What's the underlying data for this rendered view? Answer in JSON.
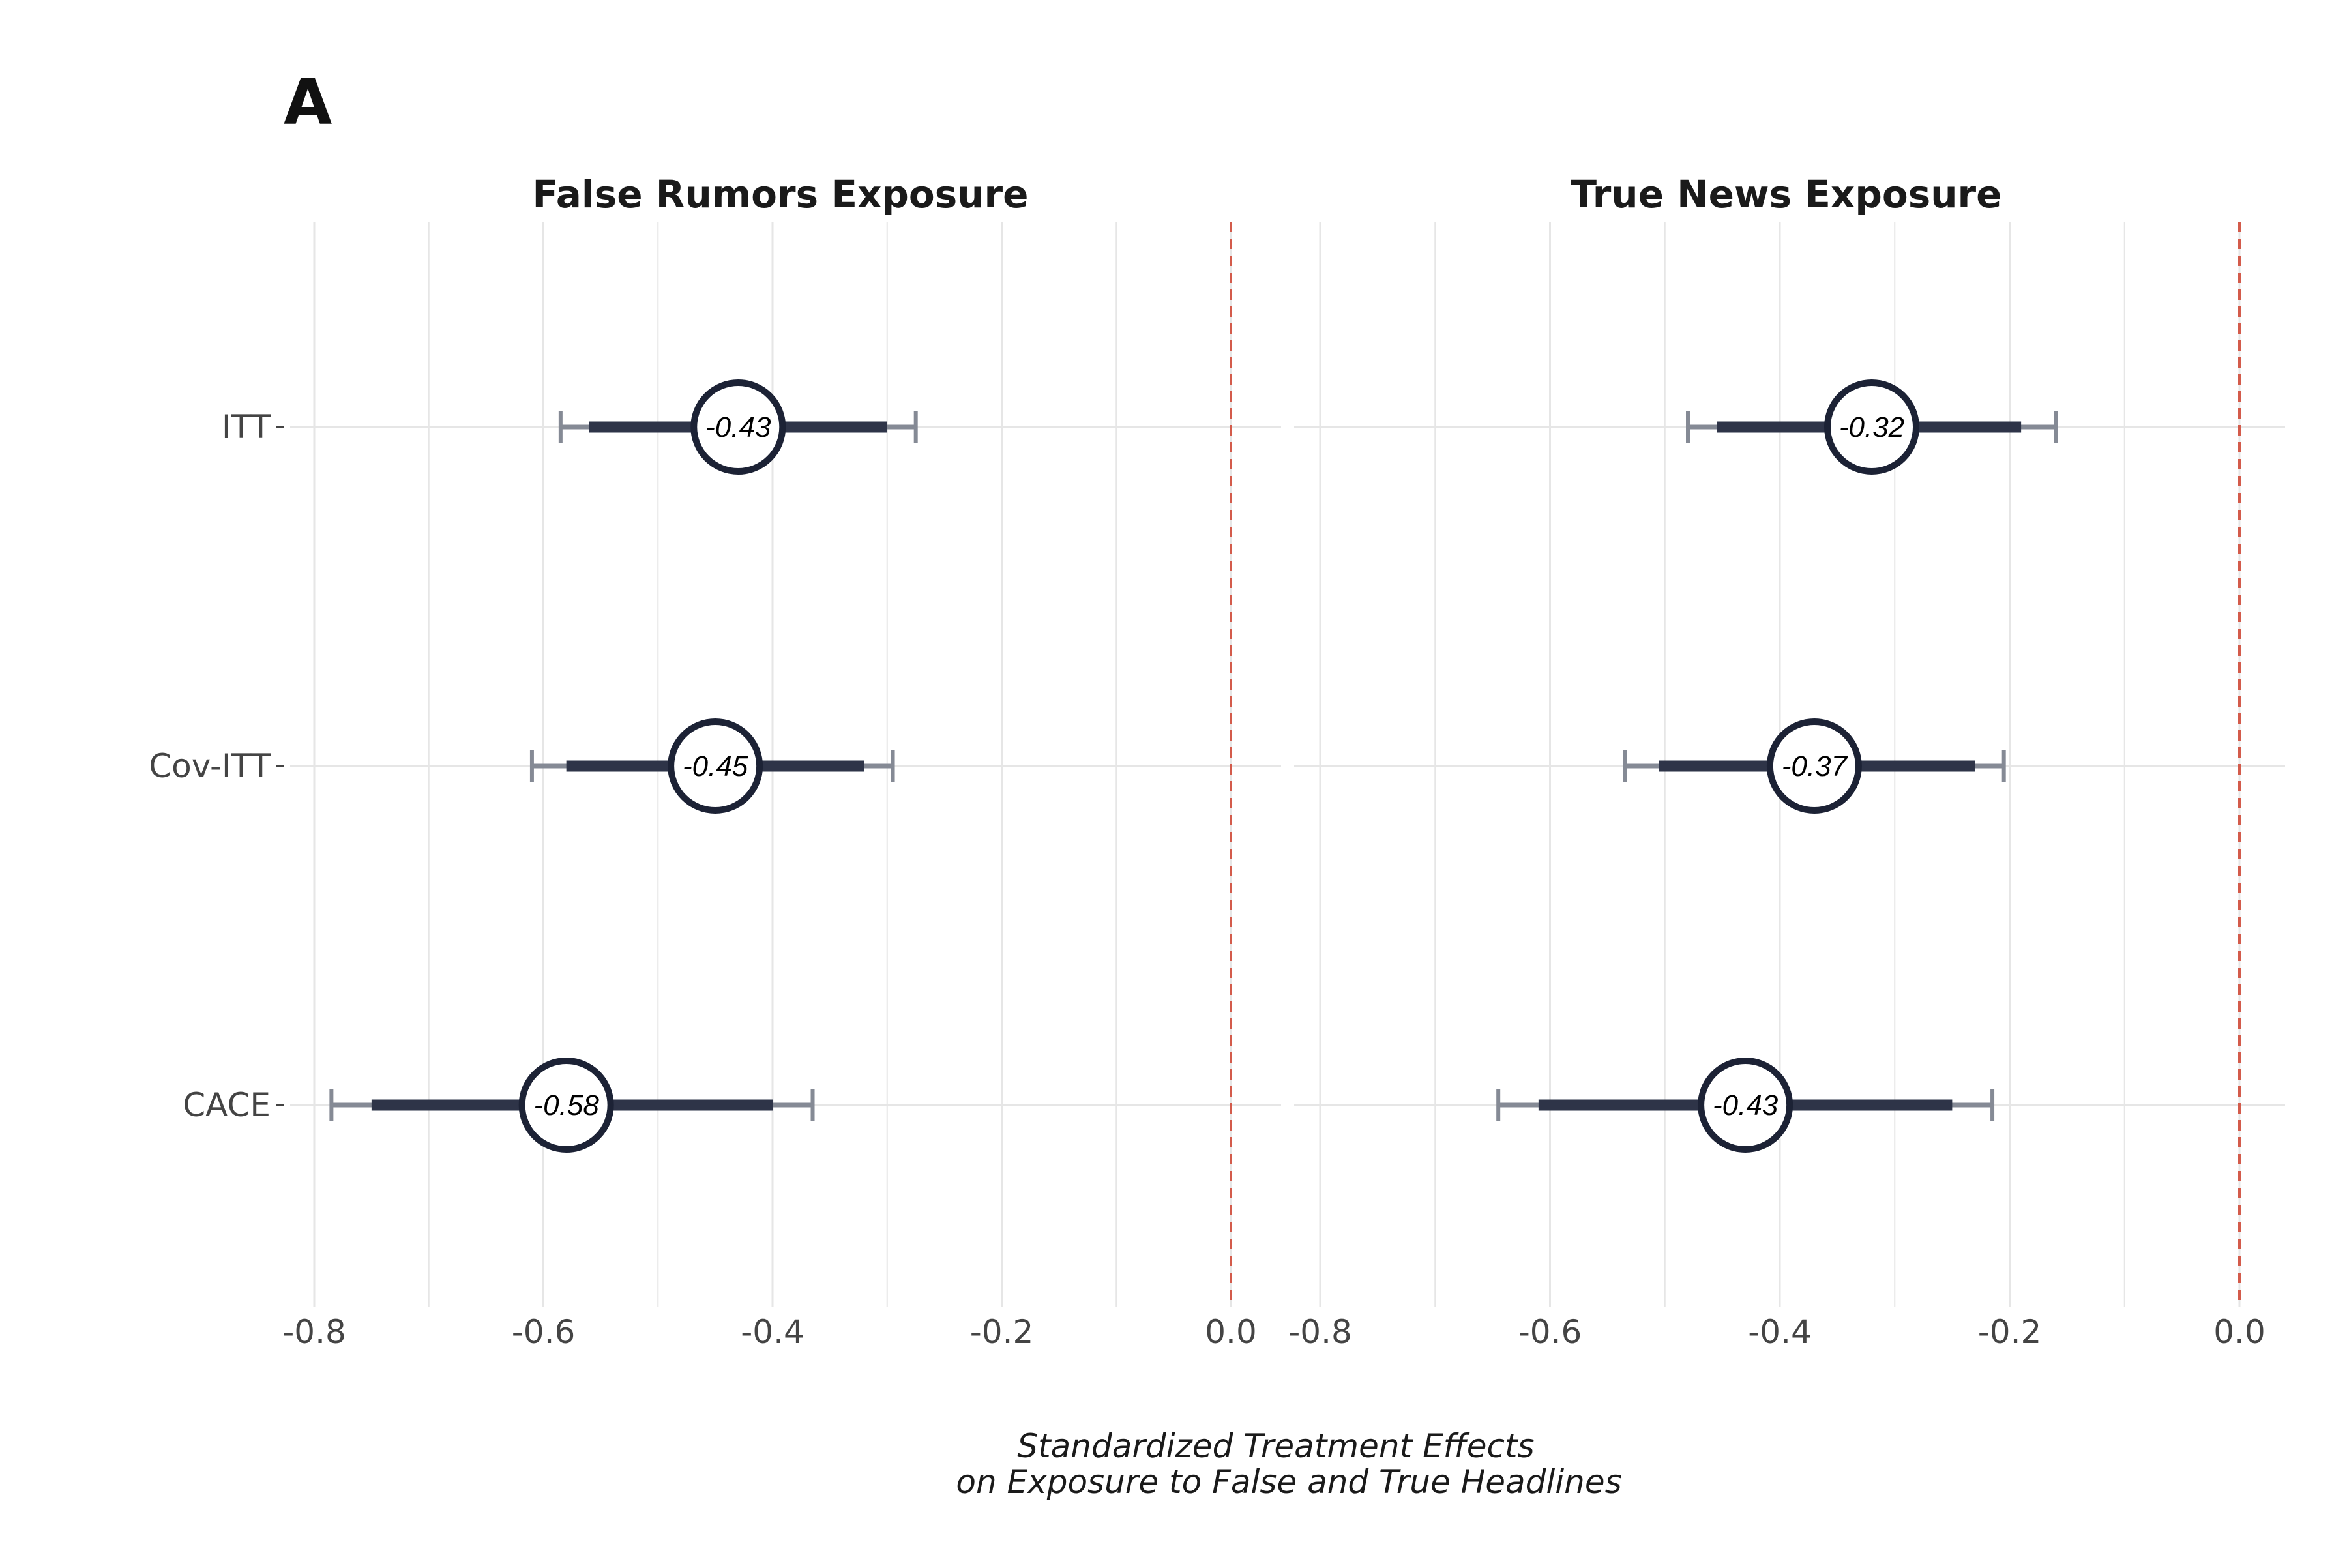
{
  "figure": {
    "panel_letter": "A",
    "x_axis_title_line1": "Standardized Treatment Effects",
    "x_axis_title_line2": "on Exposure to False and True Headlines"
  },
  "chart_data": [
    {
      "type": "forest",
      "title": "False Rumors Exposure",
      "xlim": [
        -0.8,
        0.0
      ],
      "x_ticks": [
        -0.8,
        -0.6,
        -0.4,
        -0.2,
        0.0
      ],
      "tick_labels": [
        "-0.8",
        "-0.6",
        "-0.4",
        "-0.2",
        "0.0"
      ],
      "reference_line": 0.0,
      "categories": [
        "ITT",
        "Cov-ITT",
        "CACE"
      ],
      "estimates": [
        {
          "category": "ITT",
          "estimate": -0.43,
          "label": "-0.43",
          "ci90": [
            -0.56,
            -0.3
          ],
          "ci95": [
            -0.585,
            -0.275
          ]
        },
        {
          "category": "Cov-ITT",
          "estimate": -0.45,
          "label": "-0.45",
          "ci90": [
            -0.58,
            -0.32
          ],
          "ci95": [
            -0.61,
            -0.295
          ]
        },
        {
          "category": "CACE",
          "estimate": -0.58,
          "label": "-0.58",
          "ci90": [
            -0.75,
            -0.4
          ],
          "ci95": [
            -0.785,
            -0.365
          ]
        }
      ]
    },
    {
      "type": "forest",
      "title": "True News Exposure",
      "xlim": [
        -0.8,
        0.0
      ],
      "x_ticks": [
        -0.8,
        -0.6,
        -0.4,
        -0.2,
        0.0
      ],
      "tick_labels": [
        "-0.8",
        "-0.6",
        "-0.4",
        "-0.2",
        "0.0"
      ],
      "reference_line": 0.0,
      "categories": [
        "ITT",
        "Cov-ITT",
        "CACE"
      ],
      "estimates": [
        {
          "category": "ITT",
          "estimate": -0.32,
          "label": "-0.32",
          "ci90": [
            -0.455,
            -0.19
          ],
          "ci95": [
            -0.48,
            -0.16
          ]
        },
        {
          "category": "Cov-ITT",
          "estimate": -0.37,
          "label": "-0.37",
          "ci90": [
            -0.505,
            -0.23
          ],
          "ci95": [
            -0.535,
            -0.205
          ]
        },
        {
          "category": "CACE",
          "estimate": -0.43,
          "label": "-0.43",
          "ci90": [
            -0.61,
            -0.25
          ],
          "ci95": [
            -0.645,
            -0.215
          ]
        }
      ]
    }
  ],
  "colors": {
    "point_stroke": "#1c2235",
    "ci_inner": "#2e3448",
    "ci_outer": "#858a95",
    "reference_line": "#d35b4b",
    "grid": "#e6e6e6"
  }
}
